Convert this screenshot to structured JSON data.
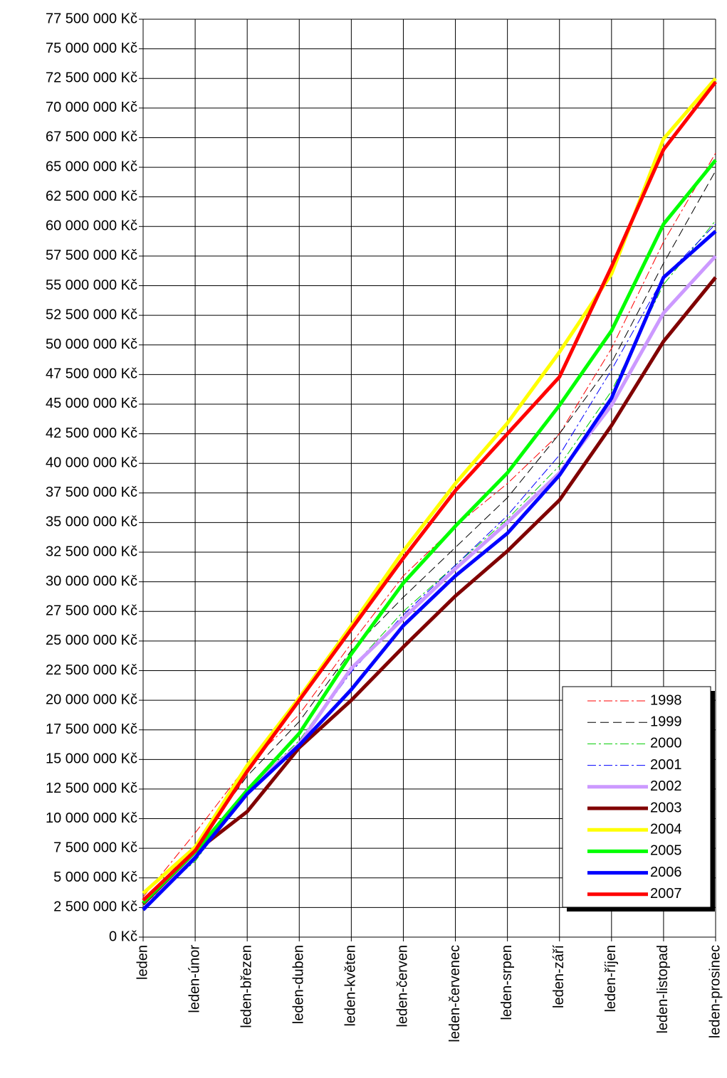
{
  "chart_data": {
    "type": "line",
    "categories": [
      "leden",
      "leden-únor",
      "leden-březen",
      "leden-duben",
      "leden-květen",
      "leden-červen",
      "leden-červenec",
      "leden-srpen",
      "leden-září",
      "leden-říjen",
      "leden-listopad",
      "leden-prosinec"
    ],
    "ylim": [
      0,
      77500000
    ],
    "yticks": [
      {
        "value": 0,
        "label": "0 Kč"
      },
      {
        "value": 2500000,
        "label": "2 500 000 Kč"
      },
      {
        "value": 5000000,
        "label": "5 000 000 Kč"
      },
      {
        "value": 7500000,
        "label": "7 500 000 Kč"
      },
      {
        "value": 10000000,
        "label": "10 000 000 Kč"
      },
      {
        "value": 12500000,
        "label": "12 500 000 Kč"
      },
      {
        "value": 15000000,
        "label": "15 000 000 Kč"
      },
      {
        "value": 17500000,
        "label": "17 500 000 Kč"
      },
      {
        "value": 20000000,
        "label": "20 000 000 Kč"
      },
      {
        "value": 22500000,
        "label": "22 500 000 Kč"
      },
      {
        "value": 25000000,
        "label": "25 000 000 Kč"
      },
      {
        "value": 27500000,
        "label": "27 500 000 Kč"
      },
      {
        "value": 30000000,
        "label": "30 000 000 Kč"
      },
      {
        "value": 32500000,
        "label": "32 500 000 Kč"
      },
      {
        "value": 35000000,
        "label": "35 000 000 Kč"
      },
      {
        "value": 37500000,
        "label": "37 500 000 Kč"
      },
      {
        "value": 40000000,
        "label": "40 000 000 Kč"
      },
      {
        "value": 42500000,
        "label": "42 500 000 Kč"
      },
      {
        "value": 45000000,
        "label": "45 000 000 Kč"
      },
      {
        "value": 47500000,
        "label": "47 500 000 Kč"
      },
      {
        "value": 50000000,
        "label": "50 000 000 Kč"
      },
      {
        "value": 52500000,
        "label": "52 500 000 Kč"
      },
      {
        "value": 55000000,
        "label": "55 000 000 Kč"
      },
      {
        "value": 57500000,
        "label": "57 500 000 Kč"
      },
      {
        "value": 60000000,
        "label": "60 000 000 Kč"
      },
      {
        "value": 62500000,
        "label": "62 500 000 Kč"
      },
      {
        "value": 65000000,
        "label": "65 000 000 Kč"
      },
      {
        "value": 67500000,
        "label": "67 500 000 Kč"
      },
      {
        "value": 70000000,
        "label": "70 000 000 Kč"
      },
      {
        "value": 72500000,
        "label": "72 500 000 Kč"
      },
      {
        "value": 75000000,
        "label": "75 000 000 Kč"
      },
      {
        "value": 77500000,
        "label": "77 500 000 Kč"
      }
    ],
    "grid": true,
    "legend": "lower right",
    "series": [
      {
        "name": "1998",
        "color": "#ff0000",
        "line_width": 1,
        "dash": "12 4 3 4",
        "values": [
          3400000,
          8800000,
          14500000,
          18800000,
          24800000,
          30500000,
          34700000,
          38300000,
          42500000,
          49700000,
          58700000,
          66200000
        ]
      },
      {
        "name": "1999",
        "color": "#000000",
        "line_width": 1,
        "dash": "12 6",
        "values": [
          3100000,
          7600000,
          13600000,
          18200000,
          24200000,
          28700000,
          32900000,
          37100000,
          42500000,
          48500000,
          56900000,
          64700000
        ]
      },
      {
        "name": "2000",
        "color": "#00cc00",
        "line_width": 1,
        "dash": "12 4 3 4",
        "values": [
          2700000,
          6400000,
          12400000,
          16600000,
          22700000,
          27500000,
          31400000,
          35300000,
          39800000,
          46100000,
          55100000,
          60500000
        ]
      },
      {
        "name": "2001",
        "color": "#0000ff",
        "line_width": 1,
        "dash": "12 4 3 4",
        "values": [
          2500000,
          6700000,
          12100000,
          16300000,
          22400000,
          27200000,
          31400000,
          35600000,
          40700000,
          47900000,
          55700000,
          60200000
        ]
      },
      {
        "name": "2002",
        "color": "#cc99ff",
        "line_width": 5,
        "dash": "none",
        "values": [
          2800000,
          7000000,
          12400000,
          16300000,
          22700000,
          26900000,
          31100000,
          35000000,
          39200000,
          44900000,
          52700000,
          57500000
        ]
      },
      {
        "name": "2003",
        "color": "#800000",
        "line_width": 5,
        "dash": "none",
        "values": [
          2800000,
          7200000,
          10600000,
          16000000,
          20000000,
          24500000,
          28800000,
          32600000,
          36900000,
          43200000,
          50300000,
          55700000
        ]
      },
      {
        "name": "2004",
        "color": "#ffff00",
        "line_width": 5,
        "dash": "none",
        "values": [
          3700000,
          7600000,
          14500000,
          20200000,
          26300000,
          32600000,
          38300000,
          43400000,
          49400000,
          56000000,
          67400000,
          72500000
        ]
      },
      {
        "name": "2005",
        "color": "#00ff00",
        "line_width": 5,
        "dash": "none",
        "values": [
          2900000,
          7200000,
          12400000,
          17200000,
          23900000,
          29900000,
          34700000,
          39200000,
          44900000,
          51200000,
          60200000,
          65600000
        ]
      },
      {
        "name": "2006",
        "color": "#0000ff",
        "line_width": 5,
        "dash": "none",
        "values": [
          2300000,
          6700000,
          12100000,
          16200000,
          20900000,
          26300000,
          30500000,
          34100000,
          39000000,
          45500000,
          55700000,
          59600000
        ]
      },
      {
        "name": "2007",
        "color": "#ff0000",
        "line_width": 5,
        "dash": "none",
        "values": [
          3100000,
          7300000,
          14000000,
          20000000,
          26000000,
          32000000,
          37700000,
          42500000,
          47300000,
          56600000,
          66500000,
          72200000
        ]
      }
    ]
  }
}
